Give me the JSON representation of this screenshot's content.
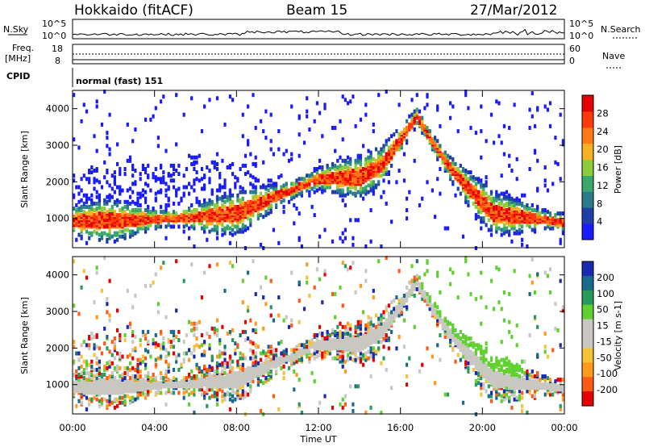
{
  "header": {
    "station": "Hokkaido (fitACF)",
    "beam": "Beam 15",
    "date": "27/Mar/2012"
  },
  "top_strips": {
    "nsky_label": "N.Sky",
    "nsky_ticks": [
      "10^5",
      "10^0"
    ],
    "nsearch_label": "N.Search",
    "nsearch_ticks": [
      "10^5",
      "10^0"
    ],
    "freq_label": "Freq.",
    "freq_unit": "[MHz]",
    "freq_ticks": [
      "18",
      "8"
    ],
    "nave_label": "Nave",
    "nave_ticks": [
      "60",
      "0"
    ],
    "cpid_label": "CPID",
    "cpid_value": "normal (fast) 151"
  },
  "colors": {
    "power_scale": [
      "#1a1aff",
      "#1f3fa8",
      "#2a7a8c",
      "#3aa86a",
      "#8ccc3a",
      "#f5b324",
      "#ff7a14",
      "#ff3a0a",
      "#e60000"
    ],
    "velocity_scale": [
      "#e60000",
      "#ff5a14",
      "#ff9a1e",
      "#f5c23a",
      "#c8c8c0",
      "#c8c8c0",
      "#60d030",
      "#2a9a5a",
      "#1a6a8a",
      "#1a2ab0"
    ]
  },
  "chart_data": [
    {
      "type": "heatmap",
      "name": "power",
      "ylabel": "Slant Range [km]",
      "yticks": [
        "1000",
        "2000",
        "3000",
        "4000"
      ],
      "ylim": [
        200,
        4500
      ],
      "xlim_hours": [
        0,
        24
      ],
      "colorbar_label": "Power [dB]",
      "colorbar_ticks": [
        "4",
        "8",
        "12",
        "16",
        "20",
        "24",
        "28"
      ],
      "clim": [
        0,
        32
      ],
      "echo_band_km": [
        [
          0,
          950
        ],
        [
          2,
          950
        ],
        [
          4,
          1000
        ],
        [
          6,
          1050
        ],
        [
          8,
          1150
        ],
        [
          10,
          1650
        ],
        [
          12,
          2100
        ],
        [
          14,
          2150
        ],
        [
          15,
          2450
        ],
        [
          16,
          3200
        ],
        [
          16.75,
          3800
        ],
        [
          17.5,
          3100
        ],
        [
          18.5,
          2300
        ],
        [
          19.5,
          1700
        ],
        [
          20.5,
          1150
        ],
        [
          22,
          1050
        ],
        [
          24,
          900
        ]
      ]
    },
    {
      "type": "heatmap",
      "name": "velocity",
      "ylabel": "Slant Range [km]",
      "yticks": [
        "1000",
        "2000",
        "3000",
        "4000"
      ],
      "ylim": [
        200,
        4500
      ],
      "xlabel": "Time UT",
      "xticks": [
        "00:00",
        "04:00",
        "08:00",
        "12:00",
        "16:00",
        "20:00",
        "00:00"
      ],
      "xlim_hours": [
        0,
        24
      ],
      "colorbar_label": "Velocity [m s-1]",
      "colorbar_ticks": [
        "200",
        "100",
        "50",
        "15",
        "-15",
        "-50",
        "-100",
        "-200"
      ],
      "clim": [
        -250,
        250
      ]
    }
  ]
}
